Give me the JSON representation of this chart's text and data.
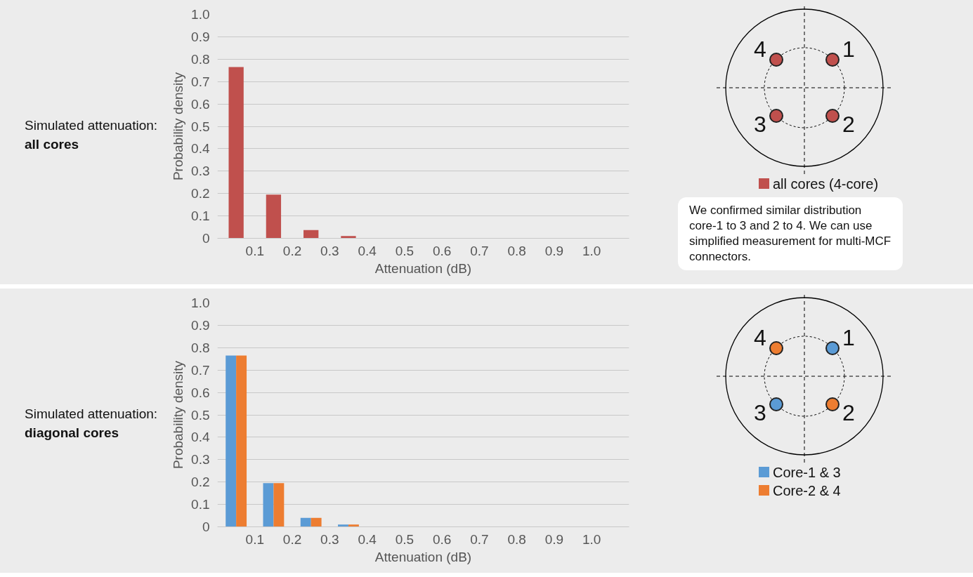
{
  "chart_data": [
    {
      "type": "bar",
      "xlabel": "Attenuation (dB)",
      "ylabel": "Probability density",
      "x": [
        0.05,
        0.15,
        0.25,
        0.35,
        0.45,
        0.55,
        0.65,
        0.75,
        0.85,
        0.95,
        1.05
      ],
      "series": [
        {
          "name": "all cores (4-core)",
          "color": "#c0504d",
          "values": [
            0.765,
            0.195,
            0.037,
            0.01,
            0,
            0,
            0,
            0,
            0,
            0,
            0
          ]
        }
      ],
      "xlim": [
        0,
        1.1
      ],
      "xticks": [
        0.1,
        0.2,
        0.3,
        0.4,
        0.5,
        0.6,
        0.7,
        0.8,
        0.9,
        {
          "value": 1.0,
          "label": "1.0"
        }
      ],
      "ylim": [
        0,
        1.0
      ],
      "yticks": [
        0,
        0.1,
        0.2,
        0.3,
        0.4,
        0.5,
        0.6,
        0.7,
        0.8,
        0.9,
        {
          "value": 1.0,
          "label": "1.0"
        }
      ],
      "grid": "y",
      "legend": "right",
      "annotations": [
        "Simulated attenuation:",
        "all cores",
        "4",
        "1",
        "3",
        "2",
        "We confirmed similar distribution core-1 to 3 and 2 to 4. We can use simplified measurement for multi-MCF connectors."
      ]
    },
    {
      "type": "bar",
      "xlabel": "Attenuation (dB)",
      "ylabel": "Probability density",
      "x": [
        0.05,
        0.15,
        0.25,
        0.35,
        0.45,
        0.55,
        0.65,
        0.75,
        0.85,
        0.95,
        1.05
      ],
      "series": [
        {
          "name": "Core-1 & 3",
          "color": "#5b9bd5",
          "values": [
            0.765,
            0.195,
            0.04,
            0.01,
            0,
            0,
            0,
            0,
            0,
            0,
            0
          ]
        },
        {
          "name": "Core-2 & 4",
          "color": "#ed7d31",
          "values": [
            0.765,
            0.195,
            0.04,
            0.01,
            0,
            0,
            0,
            0,
            0,
            0,
            0
          ]
        }
      ],
      "xlim": [
        0,
        1.1
      ],
      "xticks": [
        0.1,
        0.2,
        0.3,
        0.4,
        0.5,
        0.6,
        0.7,
        0.8,
        0.9,
        {
          "value": 1.0,
          "label": "1.0"
        }
      ],
      "ylim": [
        0,
        1.0
      ],
      "yticks": [
        0,
        0.1,
        0.2,
        0.3,
        0.4,
        0.5,
        0.6,
        0.7,
        0.8,
        0.9,
        {
          "value": 1.0,
          "label": "1.0"
        }
      ],
      "grid": "y",
      "legend": "right",
      "annotations": [
        "Simulated attenuation:",
        "diagonal cores",
        "4",
        "1",
        "3",
        "2"
      ]
    }
  ]
}
